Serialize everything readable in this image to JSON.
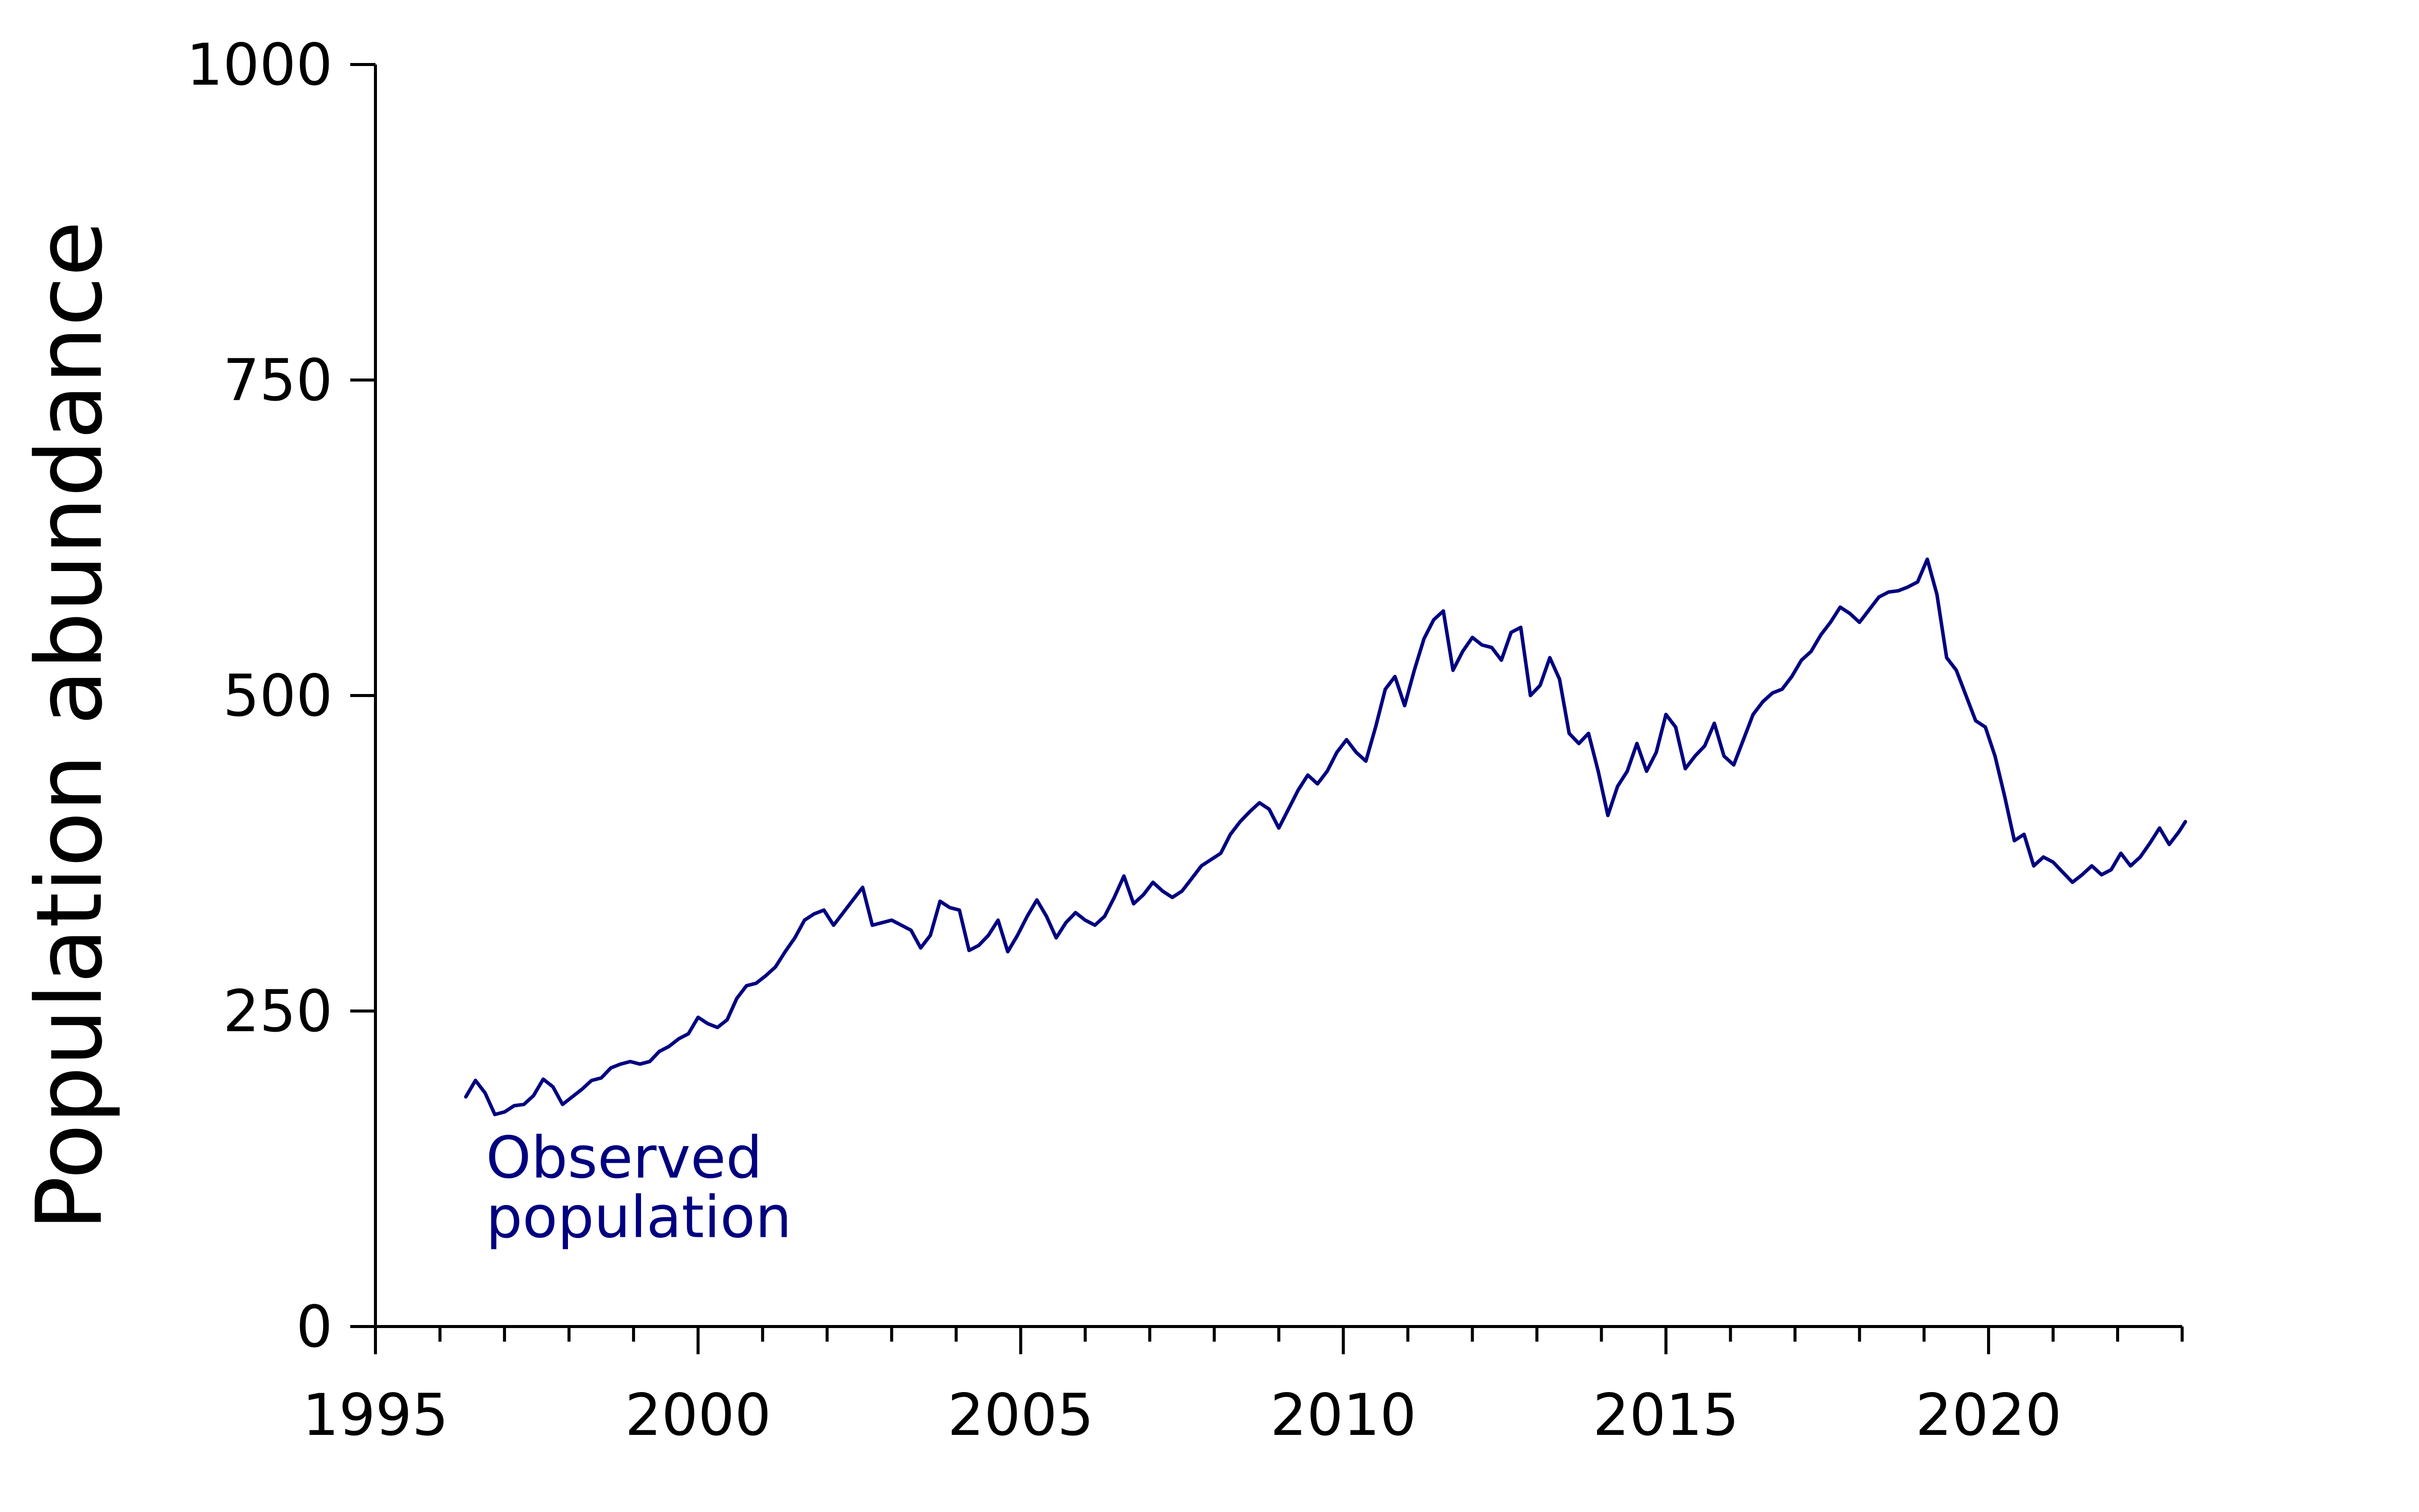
{
  "chart_data": {
    "type": "line",
    "title": "",
    "xlabel": "",
    "ylabel": "Population abundance",
    "xlim": [
      1995,
      2023
    ],
    "ylim": [
      0,
      1000
    ],
    "xticks": [
      1995,
      2000,
      2005,
      2010,
      2015,
      2020
    ],
    "yticks": [
      0,
      250,
      500,
      750,
      1000
    ],
    "grid": false,
    "series": [
      {
        "name": "Observed population",
        "label_lines": [
          "Observed",
          "population"
        ],
        "color": "#000080",
        "points": [
          [
            1996.4,
            182
          ],
          [
            1996.55,
            195
          ],
          [
            1996.7,
            185
          ],
          [
            1996.85,
            168
          ],
          [
            1997.0,
            170
          ],
          [
            1997.15,
            175
          ],
          [
            1997.3,
            176
          ],
          [
            1997.45,
            183
          ],
          [
            1997.6,
            196
          ],
          [
            1997.75,
            190
          ],
          [
            1997.9,
            176
          ],
          [
            1998.05,
            182
          ],
          [
            1998.2,
            188
          ],
          [
            1998.35,
            195
          ],
          [
            1998.5,
            197
          ],
          [
            1998.65,
            205
          ],
          [
            1998.8,
            208
          ],
          [
            1998.95,
            210
          ],
          [
            1999.1,
            208
          ],
          [
            1999.25,
            210
          ],
          [
            1999.4,
            218
          ],
          [
            1999.55,
            222
          ],
          [
            1999.7,
            228
          ],
          [
            1999.85,
            232
          ],
          [
            2000.0,
            245
          ],
          [
            2000.15,
            240
          ],
          [
            2000.3,
            237
          ],
          [
            2000.45,
            243
          ],
          [
            2000.6,
            260
          ],
          [
            2000.75,
            270
          ],
          [
            2000.9,
            272
          ],
          [
            2001.05,
            278
          ],
          [
            2001.2,
            285
          ],
          [
            2001.35,
            297
          ],
          [
            2001.5,
            308
          ],
          [
            2001.65,
            322
          ],
          [
            2001.8,
            327
          ],
          [
            2001.95,
            330
          ],
          [
            2002.1,
            318
          ],
          [
            2002.25,
            328
          ],
          [
            2002.4,
            338
          ],
          [
            2002.55,
            348
          ],
          [
            2002.7,
            318
          ],
          [
            2002.85,
            320
          ],
          [
            2003.0,
            322
          ],
          [
            2003.15,
            318
          ],
          [
            2003.3,
            314
          ],
          [
            2003.45,
            300
          ],
          [
            2003.6,
            310
          ],
          [
            2003.75,
            337
          ],
          [
            2003.9,
            332
          ],
          [
            2004.05,
            330
          ],
          [
            2004.2,
            298
          ],
          [
            2004.35,
            302
          ],
          [
            2004.5,
            310
          ],
          [
            2004.65,
            322
          ],
          [
            2004.8,
            297
          ],
          [
            2004.95,
            310
          ],
          [
            2005.1,
            325
          ],
          [
            2005.25,
            338
          ],
          [
            2005.4,
            325
          ],
          [
            2005.55,
            308
          ],
          [
            2005.7,
            320
          ],
          [
            2005.85,
            328
          ],
          [
            2006.0,
            322
          ],
          [
            2006.15,
            318
          ],
          [
            2006.3,
            325
          ],
          [
            2006.45,
            340
          ],
          [
            2006.6,
            357
          ],
          [
            2006.75,
            335
          ],
          [
            2006.9,
            342
          ],
          [
            2007.05,
            352
          ],
          [
            2007.2,
            345
          ],
          [
            2007.35,
            340
          ],
          [
            2007.5,
            345
          ],
          [
            2007.65,
            355
          ],
          [
            2007.8,
            365
          ],
          [
            2007.95,
            370
          ],
          [
            2008.1,
            375
          ],
          [
            2008.25,
            390
          ],
          [
            2008.4,
            400
          ],
          [
            2008.55,
            408
          ],
          [
            2008.7,
            415
          ],
          [
            2008.85,
            410
          ],
          [
            2009.0,
            395
          ],
          [
            2009.15,
            410
          ],
          [
            2009.3,
            425
          ],
          [
            2009.45,
            437
          ],
          [
            2009.6,
            430
          ],
          [
            2009.75,
            440
          ],
          [
            2009.9,
            455
          ],
          [
            2010.05,
            465
          ],
          [
            2010.2,
            455
          ],
          [
            2010.35,
            448
          ],
          [
            2010.5,
            475
          ],
          [
            2010.65,
            505
          ],
          [
            2010.8,
            515
          ],
          [
            2010.95,
            492
          ],
          [
            2011.1,
            520
          ],
          [
            2011.25,
            545
          ],
          [
            2011.4,
            560
          ],
          [
            2011.55,
            567
          ],
          [
            2011.7,
            520
          ],
          [
            2011.85,
            535
          ],
          [
            2012.0,
            546
          ],
          [
            2012.15,
            540
          ],
          [
            2012.3,
            538
          ],
          [
            2012.45,
            528
          ],
          [
            2012.6,
            550
          ],
          [
            2012.75,
            554
          ],
          [
            2012.9,
            500
          ],
          [
            2013.05,
            508
          ],
          [
            2013.2,
            530
          ],
          [
            2013.35,
            513
          ],
          [
            2013.5,
            470
          ],
          [
            2013.65,
            462
          ],
          [
            2013.8,
            470
          ],
          [
            2013.95,
            440
          ],
          [
            2014.1,
            405
          ],
          [
            2014.25,
            428
          ],
          [
            2014.4,
            440
          ],
          [
            2014.55,
            462
          ],
          [
            2014.7,
            440
          ],
          [
            2014.85,
            455
          ],
          [
            2015.0,
            485
          ],
          [
            2015.15,
            475
          ],
          [
            2015.3,
            442
          ],
          [
            2015.45,
            452
          ],
          [
            2015.6,
            460
          ],
          [
            2015.75,
            478
          ],
          [
            2015.9,
            452
          ],
          [
            2016.05,
            445
          ],
          [
            2016.2,
            465
          ],
          [
            2016.35,
            485
          ],
          [
            2016.5,
            495
          ],
          [
            2016.65,
            502
          ],
          [
            2016.8,
            505
          ],
          [
            2016.95,
            515
          ],
          [
            2017.1,
            528
          ],
          [
            2017.25,
            535
          ],
          [
            2017.4,
            548
          ],
          [
            2017.55,
            558
          ],
          [
            2017.7,
            570
          ],
          [
            2017.85,
            565
          ],
          [
            2018.0,
            558
          ],
          [
            2018.15,
            568
          ],
          [
            2018.3,
            578
          ],
          [
            2018.45,
            582
          ],
          [
            2018.6,
            583
          ],
          [
            2018.75,
            586
          ],
          [
            2018.9,
            590
          ],
          [
            2019.05,
            608
          ],
          [
            2019.2,
            580
          ],
          [
            2019.35,
            530
          ],
          [
            2019.5,
            520
          ],
          [
            2019.65,
            500
          ],
          [
            2019.8,
            480
          ],
          [
            2019.95,
            475
          ],
          [
            2020.1,
            452
          ],
          [
            2020.25,
            420
          ],
          [
            2020.4,
            385
          ],
          [
            2020.55,
            390
          ],
          [
            2020.7,
            365
          ],
          [
            2020.85,
            372
          ],
          [
            2021.0,
            368
          ],
          [
            2021.15,
            360
          ],
          [
            2021.3,
            352
          ],
          [
            2021.45,
            358
          ],
          [
            2021.6,
            365
          ],
          [
            2021.75,
            358
          ],
          [
            2021.9,
            362
          ],
          [
            2022.05,
            375
          ],
          [
            2022.2,
            365
          ],
          [
            2022.35,
            372
          ],
          [
            2022.5,
            383
          ],
          [
            2022.65,
            395
          ],
          [
            2022.8,
            382
          ],
          [
            2022.95,
            392
          ],
          [
            2023.05,
            400
          ]
        ]
      }
    ]
  }
}
